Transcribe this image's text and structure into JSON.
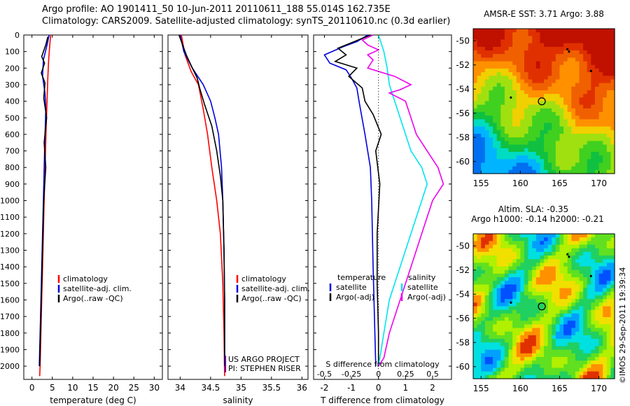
{
  "header": {
    "line1": "Argo profile: AO 1901411_50 10-Jun-2011 20110611_188 55.014S 162.735E",
    "line2": "Climatology: CARS2009. Satellite-adjusted climatology: synTS_20110610.nc (0.3d earlier)"
  },
  "colors": {
    "climatology": "#ff0000",
    "satellite": "#0000dd",
    "argo": "#000000",
    "salinity_satellite": "#00e5ee",
    "salinity_argo": "#ee00ee",
    "credit": "#660099"
  },
  "depth_axis": {
    "ticks": [
      "0",
      "100",
      "200",
      "300",
      "400",
      "500",
      "600",
      "700",
      "800",
      "900",
      "1000",
      "1100",
      "1200",
      "1300",
      "1400",
      "1500",
      "1600",
      "1700",
      "1800",
      "1900",
      "2000"
    ],
    "range": [
      0,
      2080
    ]
  },
  "chart_data": [
    {
      "type": "line",
      "name": "temperature-panel",
      "xlabel": "temperature (deg C)",
      "x_ticks": [
        "0",
        "5",
        "10",
        "15",
        "20",
        "25",
        "30"
      ],
      "x_tick_values": [
        0,
        5,
        10,
        15,
        20,
        25,
        30
      ],
      "xlim": [
        -2,
        32
      ],
      "legend_position": "bottom-left",
      "series": [
        {
          "name": "climatology",
          "color_key": "climatology",
          "points": [
            [
              4.6,
              0
            ],
            [
              4.4,
              50
            ],
            [
              4.1,
              150
            ],
            [
              3.9,
              250
            ],
            [
              3.7,
              400
            ],
            [
              3.5,
              550
            ],
            [
              3.2,
              800
            ],
            [
              2.9,
              1100
            ],
            [
              2.6,
              1400
            ],
            [
              2.3,
              1700
            ],
            [
              2.0,
              2000
            ],
            [
              1.9,
              2060
            ]
          ]
        },
        {
          "name": "satellite-adj. clim.",
          "color_key": "satellite",
          "points": [
            [
              4.2,
              0
            ],
            [
              3.8,
              50
            ],
            [
              2.8,
              150
            ],
            [
              2.6,
              250
            ],
            [
              3.2,
              350
            ],
            [
              3.4,
              450
            ],
            [
              3.1,
              700
            ],
            [
              2.8,
              1000
            ],
            [
              2.5,
              1300
            ],
            [
              2.2,
              1600
            ],
            [
              1.9,
              1900
            ],
            [
              1.8,
              2000
            ]
          ]
        },
        {
          "name": "Argo(..raw -QC)",
          "color_key": "argo",
          "points": [
            [
              3.9,
              10
            ],
            [
              3.4,
              60
            ],
            [
              2.4,
              130
            ],
            [
              3.1,
              170
            ],
            [
              2.3,
              230
            ],
            [
              3.2,
              290
            ],
            [
              2.9,
              380
            ],
            [
              3.6,
              500
            ],
            [
              3.0,
              650
            ],
            [
              3.4,
              800
            ],
            [
              2.9,
              1000
            ],
            [
              2.6,
              1300
            ],
            [
              2.3,
              1600
            ],
            [
              2.0,
              1900
            ],
            [
              1.9,
              2000
            ]
          ]
        }
      ]
    },
    {
      "type": "line",
      "name": "salinity-panel",
      "xlabel": "salinity",
      "x_ticks": [
        "34",
        "34.5",
        "35",
        "35.5",
        "36"
      ],
      "x_tick_values": [
        34,
        34.5,
        35,
        35.5,
        36
      ],
      "xlim": [
        33.8,
        36.1
      ],
      "legend_position": "bottom-right",
      "credit_lines": [
        "US ARGO PROJECT",
        "PI: STEPHEN RISER"
      ],
      "series": [
        {
          "name": "climatology",
          "color_key": "climatology",
          "points": [
            [
              34.02,
              0
            ],
            [
              34.08,
              120
            ],
            [
              34.18,
              220
            ],
            [
              34.3,
              300
            ],
            [
              34.38,
              450
            ],
            [
              34.45,
              600
            ],
            [
              34.52,
              800
            ],
            [
              34.6,
              1000
            ],
            [
              34.66,
              1200
            ],
            [
              34.7,
              1500
            ],
            [
              34.72,
              1800
            ],
            [
              34.73,
              2060
            ]
          ]
        },
        {
          "name": "satellite-adj. clim.",
          "color_key": "satellite",
          "points": [
            [
              34.0,
              0
            ],
            [
              34.06,
              100
            ],
            [
              34.2,
              200
            ],
            [
              34.38,
              300
            ],
            [
              34.5,
              400
            ],
            [
              34.57,
              500
            ],
            [
              34.63,
              600
            ],
            [
              34.68,
              800
            ],
            [
              34.7,
              1000
            ],
            [
              34.72,
              1300
            ],
            [
              34.73,
              1600
            ],
            [
              34.73,
              2000
            ]
          ]
        },
        {
          "name": "Argo(..raw -QC)",
          "color_key": "argo",
          "points": [
            [
              33.98,
              0
            ],
            [
              34.1,
              120
            ],
            [
              34.2,
              200
            ],
            [
              34.28,
              260
            ],
            [
              34.32,
              320
            ],
            [
              34.4,
              420
            ],
            [
              34.52,
              550
            ],
            [
              34.6,
              700
            ],
            [
              34.66,
              850
            ],
            [
              34.7,
              1000
            ],
            [
              34.72,
              1300
            ],
            [
              34.73,
              1600
            ],
            [
              34.73,
              2000
            ]
          ]
        }
      ]
    },
    {
      "type": "line",
      "name": "difference-panel",
      "xlabel": "T difference from climatology",
      "xlabel_top": "S difference from climatology",
      "x_ticks": [
        "-2",
        "-1",
        "0",
        "1",
        "2"
      ],
      "x_tick_values": [
        -2,
        -1,
        0,
        1,
        2
      ],
      "x_ticks_s": [
        "-0.5",
        "-0.25",
        "0",
        "0.25",
        "0.5"
      ],
      "x_tick_values_s": [
        -0.5,
        -0.25,
        0,
        0.25,
        0.5
      ],
      "xlim": [
        -2.4,
        2.7
      ],
      "legend_position": "bottom",
      "legend_headers": {
        "temperature": "temperature",
        "salinity": "salinity"
      },
      "series": [
        {
          "name": "satellite",
          "group": "temperature",
          "color_key": "satellite",
          "points": [
            [
              -0.4,
              0
            ],
            [
              -0.8,
              40
            ],
            [
              -1.3,
              70
            ],
            [
              -2.0,
              120
            ],
            [
              -1.8,
              170
            ],
            [
              -1.2,
              210
            ],
            [
              -1.0,
              260
            ],
            [
              -0.8,
              320
            ],
            [
              -0.7,
              420
            ],
            [
              -0.5,
              600
            ],
            [
              -0.3,
              800
            ],
            [
              -0.25,
              1000
            ],
            [
              -0.2,
              1400
            ],
            [
              -0.15,
              1700
            ],
            [
              -0.1,
              2000
            ]
          ]
        },
        {
          "name": "Argo(-adj)",
          "group": "temperature",
          "color_key": "argo",
          "points": [
            [
              -0.3,
              0
            ],
            [
              -0.9,
              40
            ],
            [
              -1.5,
              80
            ],
            [
              -1.2,
              120
            ],
            [
              -1.6,
              160
            ],
            [
              -0.8,
              200
            ],
            [
              -1.1,
              250
            ],
            [
              -0.6,
              320
            ],
            [
              -0.5,
              400
            ],
            [
              -0.2,
              480
            ],
            [
              0.1,
              600
            ],
            [
              -0.1,
              700
            ],
            [
              0.05,
              900
            ],
            [
              -0.05,
              1200
            ],
            [
              -0.05,
              1500
            ],
            [
              0.0,
              1800
            ],
            [
              0.0,
              2000
            ]
          ]
        },
        {
          "name": "satellite",
          "group": "salinity",
          "color_key": "salinity_satellite",
          "points": [
            [
              0.0,
              0
            ],
            [
              0.05,
              100
            ],
            [
              0.08,
              200
            ],
            [
              0.1,
              300
            ],
            [
              0.15,
              400
            ],
            [
              0.2,
              500
            ],
            [
              0.25,
              600
            ],
            [
              0.3,
              700
            ],
            [
              0.4,
              800
            ],
            [
              0.45,
              900
            ],
            [
              0.4,
              1000
            ],
            [
              0.3,
              1200
            ],
            [
              0.2,
              1400
            ],
            [
              0.1,
              1600
            ],
            [
              0.05,
              1800
            ],
            [
              0.0,
              2000
            ]
          ]
        },
        {
          "name": "Argo(-adj)",
          "group": "salinity",
          "color_key": "salinity_argo",
          "points": [
            [
              -0.05,
              0
            ],
            [
              -0.15,
              30
            ],
            [
              -0.1,
              60
            ],
            [
              0.0,
              90
            ],
            [
              -0.1,
              120
            ],
            [
              -0.05,
              150
            ],
            [
              -0.1,
              200
            ],
            [
              0.15,
              250
            ],
            [
              0.3,
              300
            ],
            [
              0.2,
              330
            ],
            [
              0.1,
              350
            ],
            [
              0.25,
              400
            ],
            [
              0.3,
              500
            ],
            [
              0.35,
              600
            ],
            [
              0.45,
              700
            ],
            [
              0.55,
              800
            ],
            [
              0.6,
              900
            ],
            [
              0.5,
              1000
            ],
            [
              0.4,
              1200
            ],
            [
              0.3,
              1400
            ],
            [
              0.2,
              1600
            ],
            [
              0.1,
              1800
            ],
            [
              0.05,
              1950
            ],
            [
              0.0,
              2000
            ]
          ]
        }
      ]
    },
    {
      "type": "heatmap",
      "name": "sst-map",
      "title": "AMSR-E SST: 3.71  Argo: 3.88",
      "x_ticks": [
        "155",
        "160",
        "165",
        "170"
      ],
      "y_ticks": [
        "-50",
        "-52",
        "-54",
        "-56",
        "-58",
        "-60"
      ],
      "xlim": [
        154,
        172
      ],
      "ylim": [
        -61,
        -49
      ]
    },
    {
      "type": "heatmap",
      "name": "sla-map",
      "title_lines": [
        "Altim. SLA: -0.35",
        "Argo h1000: -0.14 h2000: -0.21"
      ],
      "x_ticks": [
        "155",
        "160",
        "165",
        "170"
      ],
      "y_ticks": [
        "-50",
        "-52",
        "-54",
        "-56",
        "-58",
        "-60"
      ],
      "xlim": [
        154,
        172
      ],
      "ylim": [
        -61,
        -49
      ]
    }
  ],
  "footer": {
    "stamp": "©IMOS 29-Sep-2011 19:39:34"
  }
}
